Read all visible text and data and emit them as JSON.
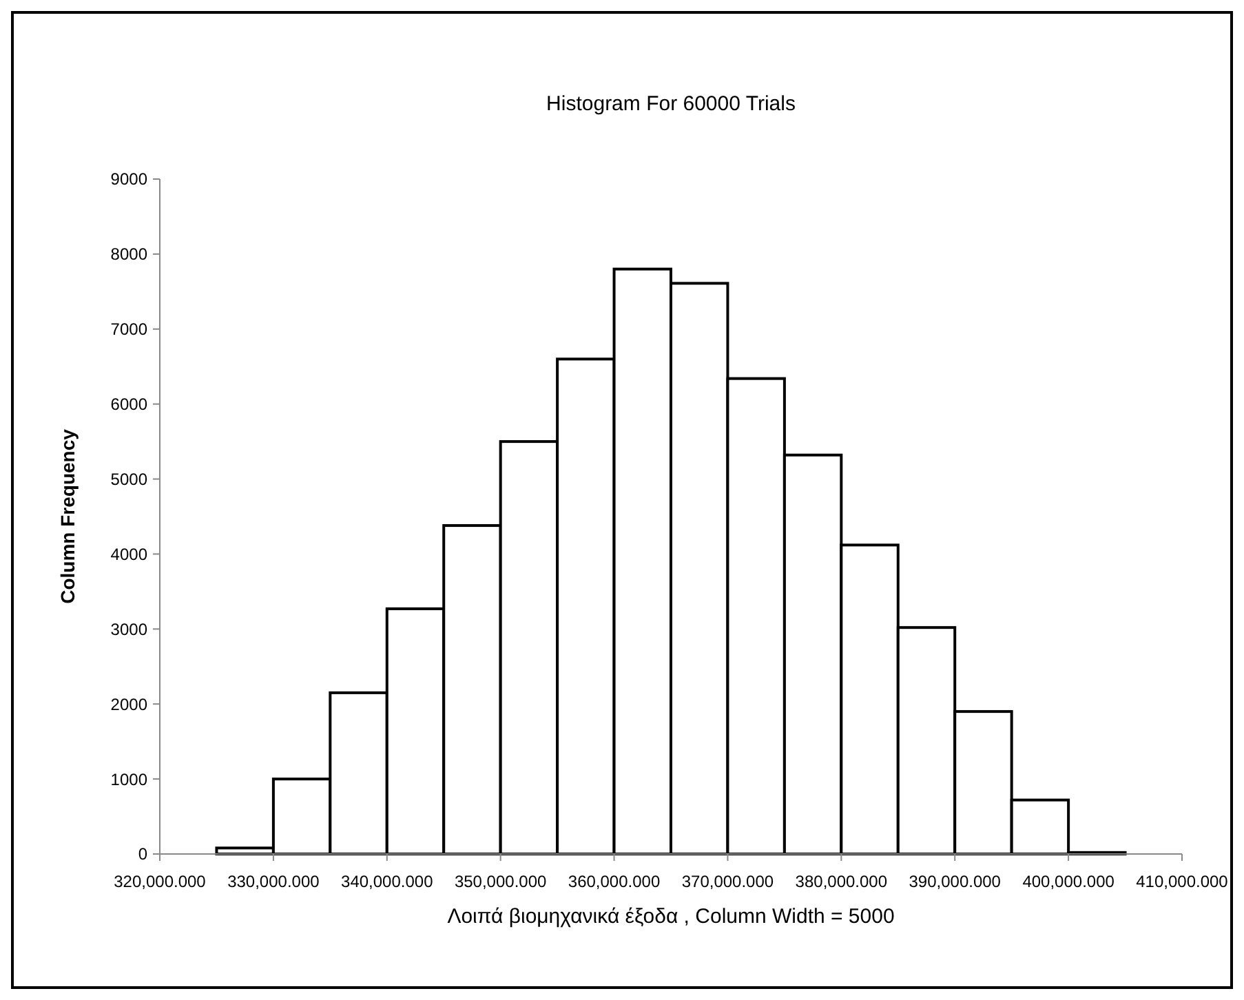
{
  "chart_data": {
    "type": "histogram",
    "title": "Histogram For 60000 Trials",
    "xlabel": "Λοιπά βιομηχανικά έξοδα , Column Width = 5000",
    "ylabel": "Column Frequency",
    "bins": [
      325000,
      330000,
      335000,
      340000,
      345000,
      350000,
      355000,
      360000,
      365000,
      370000,
      375000,
      380000,
      385000,
      390000,
      395000,
      400000,
      405000
    ],
    "values": [
      80,
      1000,
      2150,
      3270,
      4380,
      5500,
      6600,
      7800,
      7610,
      6340,
      5320,
      4120,
      3020,
      1900,
      720,
      20
    ],
    "color": "#ffffff",
    "xlim": [
      320000,
      410000
    ],
    "xticks": [
      {
        "value": 320000,
        "label": "320,000.000"
      },
      {
        "value": 330000,
        "label": "330,000.000"
      },
      {
        "value": 340000,
        "label": "340,000.000"
      },
      {
        "value": 350000,
        "label": "350,000.000"
      },
      {
        "value": 360000,
        "label": "360,000.000"
      },
      {
        "value": 370000,
        "label": "370,000.000"
      },
      {
        "value": 380000,
        "label": "380,000.000"
      },
      {
        "value": 390000,
        "label": "390,000.000"
      },
      {
        "value": 400000,
        "label": "400,000.000"
      },
      {
        "value": 410000,
        "label": "410,000.000"
      }
    ],
    "ylim": [
      0,
      9000
    ],
    "yticks": [
      0,
      1000,
      2000,
      3000,
      4000,
      5000,
      6000,
      7000,
      8000,
      9000
    ],
    "grid": false
  }
}
